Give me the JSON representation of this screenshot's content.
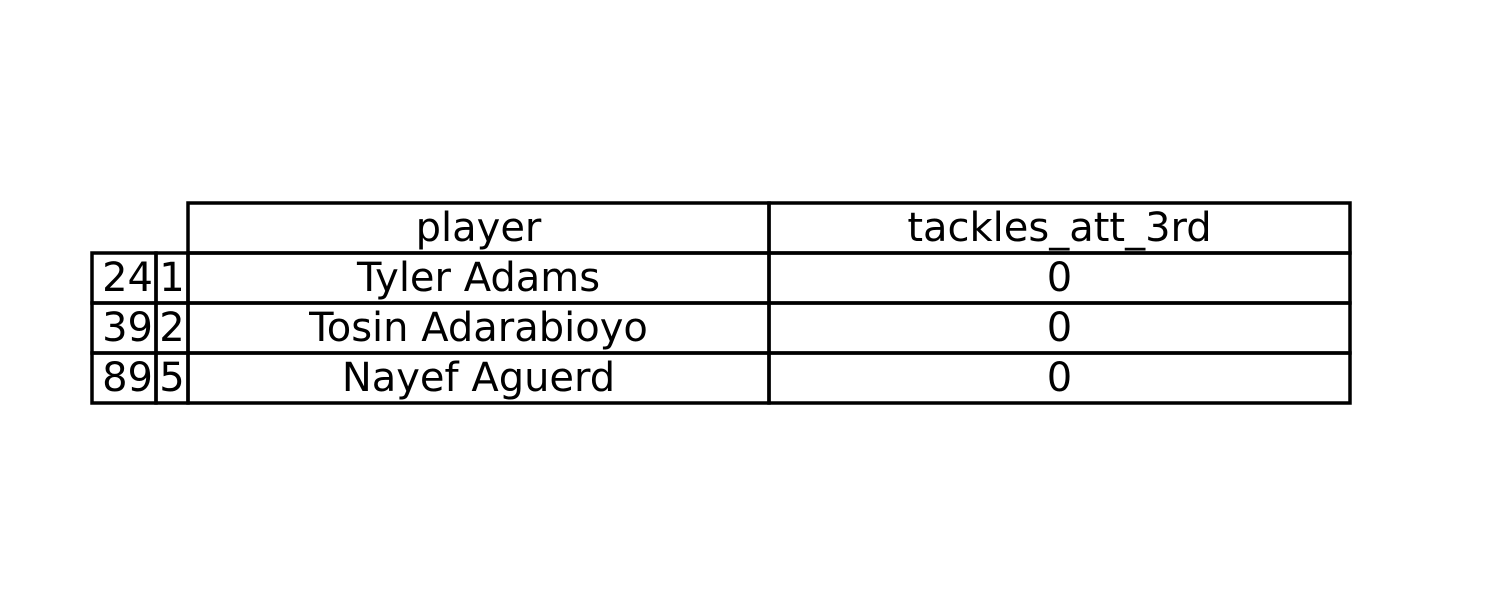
{
  "chart_data": {
    "type": "table",
    "columns": [
      "player",
      "tackles_att_3rd"
    ],
    "rows": [
      {
        "index": "24",
        "rank": "1",
        "cells": [
          "Tyler Adams",
          "0"
        ]
      },
      {
        "index": "39",
        "rank": "2",
        "cells": [
          "Tosin Adarabioyo",
          "0"
        ]
      },
      {
        "index": "89",
        "rank": "5",
        "cells": [
          "Nayef Aguerd",
          "0"
        ]
      }
    ],
    "colors": {
      "border": "#000000",
      "text": "#000000",
      "background": "#ffffff"
    }
  }
}
